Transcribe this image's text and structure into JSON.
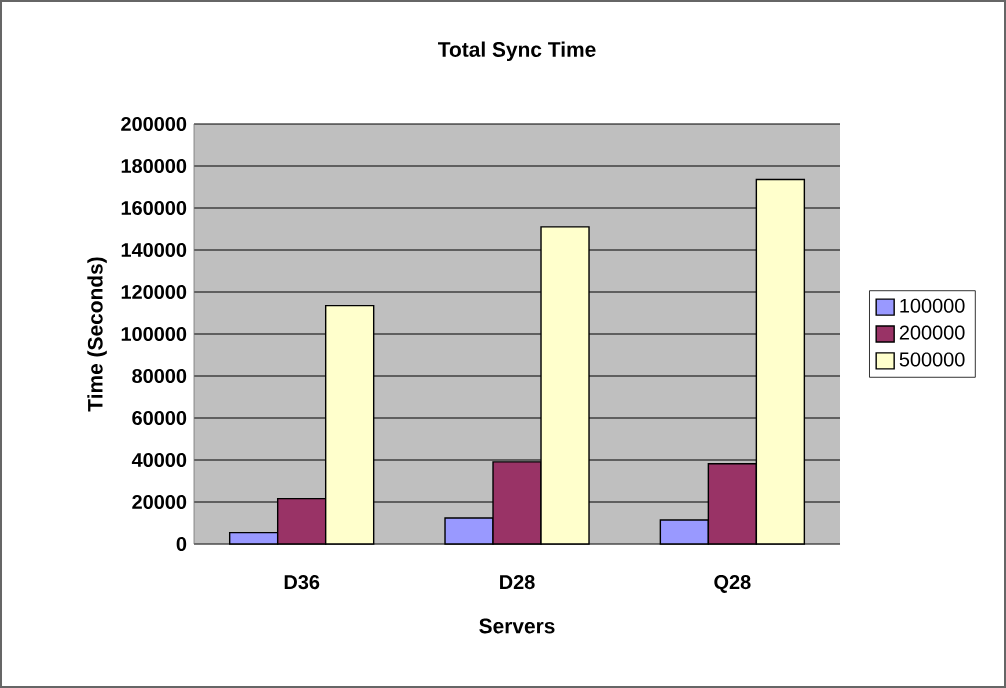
{
  "chart_data": {
    "type": "bar",
    "title": "Total Sync Time",
    "xlabel": "Servers",
    "ylabel": "Time (Seconds)",
    "categories": [
      "D36",
      "D28",
      "Q28"
    ],
    "series": [
      {
        "name": "100000",
        "color": "#9999ff",
        "values": [
          5400,
          12400,
          11400
        ]
      },
      {
        "name": "200000",
        "color": "#993366",
        "values": [
          21600,
          39100,
          38200
        ]
      },
      {
        "name": "500000",
        "color": "#ffffcc",
        "values": [
          113500,
          151000,
          173600
        ]
      }
    ],
    "ylim": [
      0,
      200000
    ],
    "yticks": [
      0,
      20000,
      40000,
      60000,
      80000,
      100000,
      120000,
      140000,
      160000,
      180000,
      200000
    ],
    "grid": "y",
    "legend": "right"
  }
}
